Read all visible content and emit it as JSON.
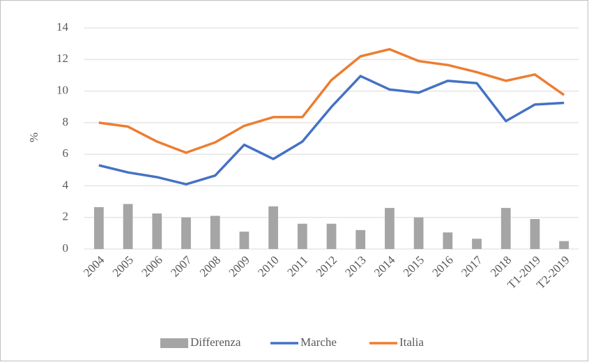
{
  "chart_data": {
    "type": "combo",
    "y_label": "%",
    "categories": [
      "2004",
      "2005",
      "2006",
      "2007",
      "2008",
      "2009",
      "2010",
      "2011",
      "2012",
      "2013",
      "2014",
      "2015",
      "2016",
      "2017",
      "2018",
      "T1-2019",
      "T2-2019"
    ],
    "series": [
      {
        "name": "Differenza",
        "type": "bar",
        "color": "#a5a5a5",
        "values": [
          2.65,
          2.85,
          2.25,
          2.0,
          2.1,
          1.1,
          2.7,
          1.6,
          1.6,
          1.2,
          2.6,
          2.0,
          1.05,
          0.65,
          2.6,
          1.9,
          0.5
        ]
      },
      {
        "name": "Marche",
        "type": "line",
        "color": "#4472c4",
        "values": [
          5.3,
          4.85,
          4.55,
          4.1,
          4.65,
          6.6,
          5.7,
          6.8,
          9.0,
          10.95,
          10.1,
          9.9,
          10.65,
          10.5,
          8.1,
          9.15,
          9.25
        ]
      },
      {
        "name": "Italia",
        "type": "line",
        "color": "#ed7d31",
        "values": [
          8.0,
          7.75,
          6.8,
          6.1,
          6.75,
          7.8,
          8.35,
          8.35,
          10.7,
          12.2,
          12.65,
          11.9,
          11.65,
          11.2,
          10.65,
          11.05,
          9.75
        ]
      }
    ],
    "ylim": [
      0,
      14
    ],
    "yticks": [
      0,
      2,
      4,
      6,
      8,
      10,
      12,
      14
    ],
    "grid": true,
    "legend": "bottom"
  }
}
